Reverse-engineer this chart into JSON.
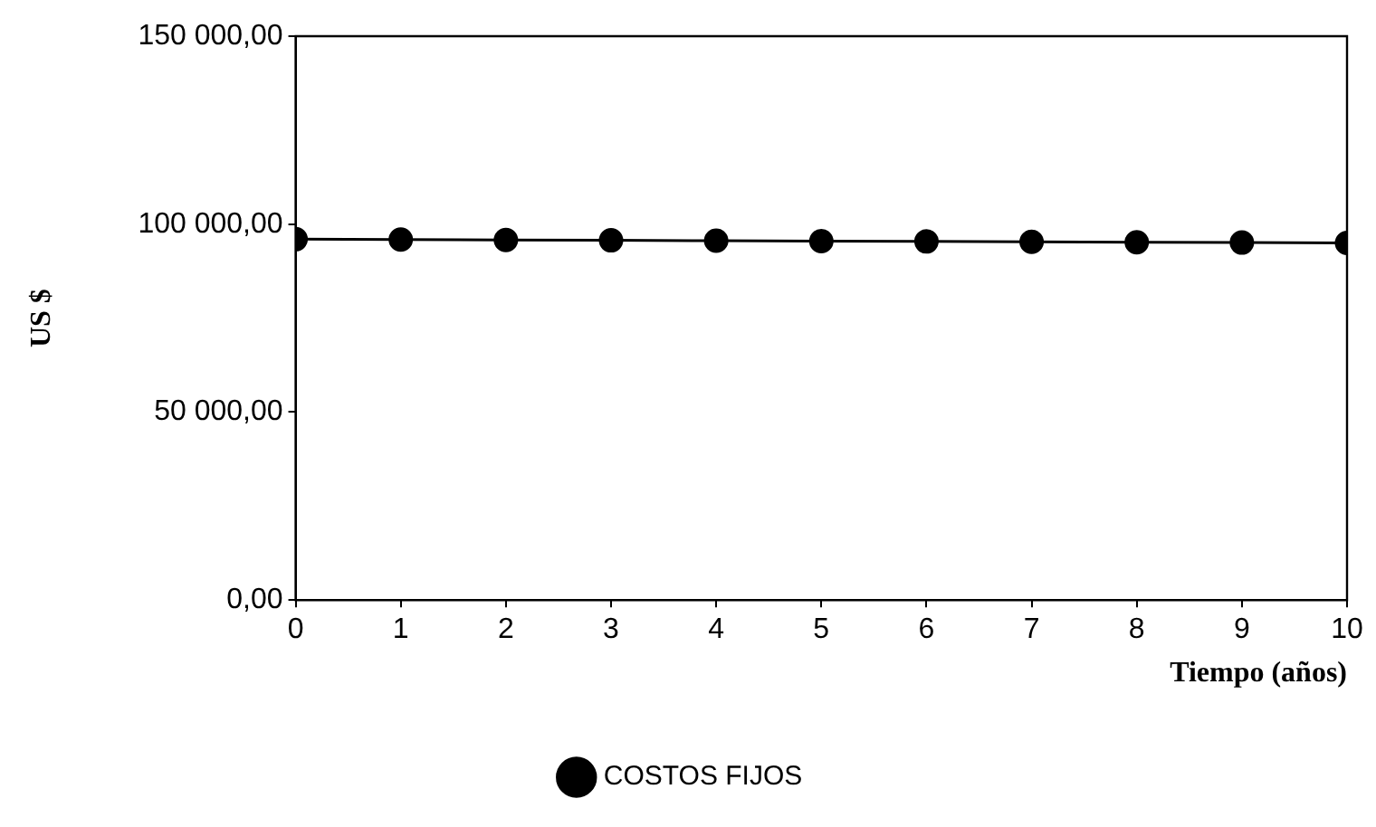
{
  "chart_data": {
    "type": "line",
    "xlabel": "Tiempo (años)",
    "ylabel": "US $",
    "x": [
      0,
      1,
      2,
      3,
      4,
      5,
      6,
      7,
      8,
      9,
      10
    ],
    "series": [
      {
        "name": "COSTOS FIJOS",
        "color": "#000000",
        "values": [
          96000,
          95900,
          95800,
          95700,
          95600,
          95500,
          95400,
          95300,
          95200,
          95100,
          95000
        ]
      }
    ],
    "xlim": [
      0,
      10
    ],
    "xticks": [
      0,
      1,
      2,
      3,
      4,
      5,
      6,
      7,
      8,
      9,
      10
    ],
    "ylim": [
      0,
      150000
    ],
    "yticks": [
      {
        "value": 0,
        "label": "0,00"
      },
      {
        "value": 50000,
        "label": "50 000,00"
      },
      {
        "value": 100000,
        "label": "100 000,00"
      },
      {
        "value": 150000,
        "label": "150 000,00"
      }
    ],
    "marker": "circle",
    "line_style": "solid",
    "legend": "bottom"
  }
}
